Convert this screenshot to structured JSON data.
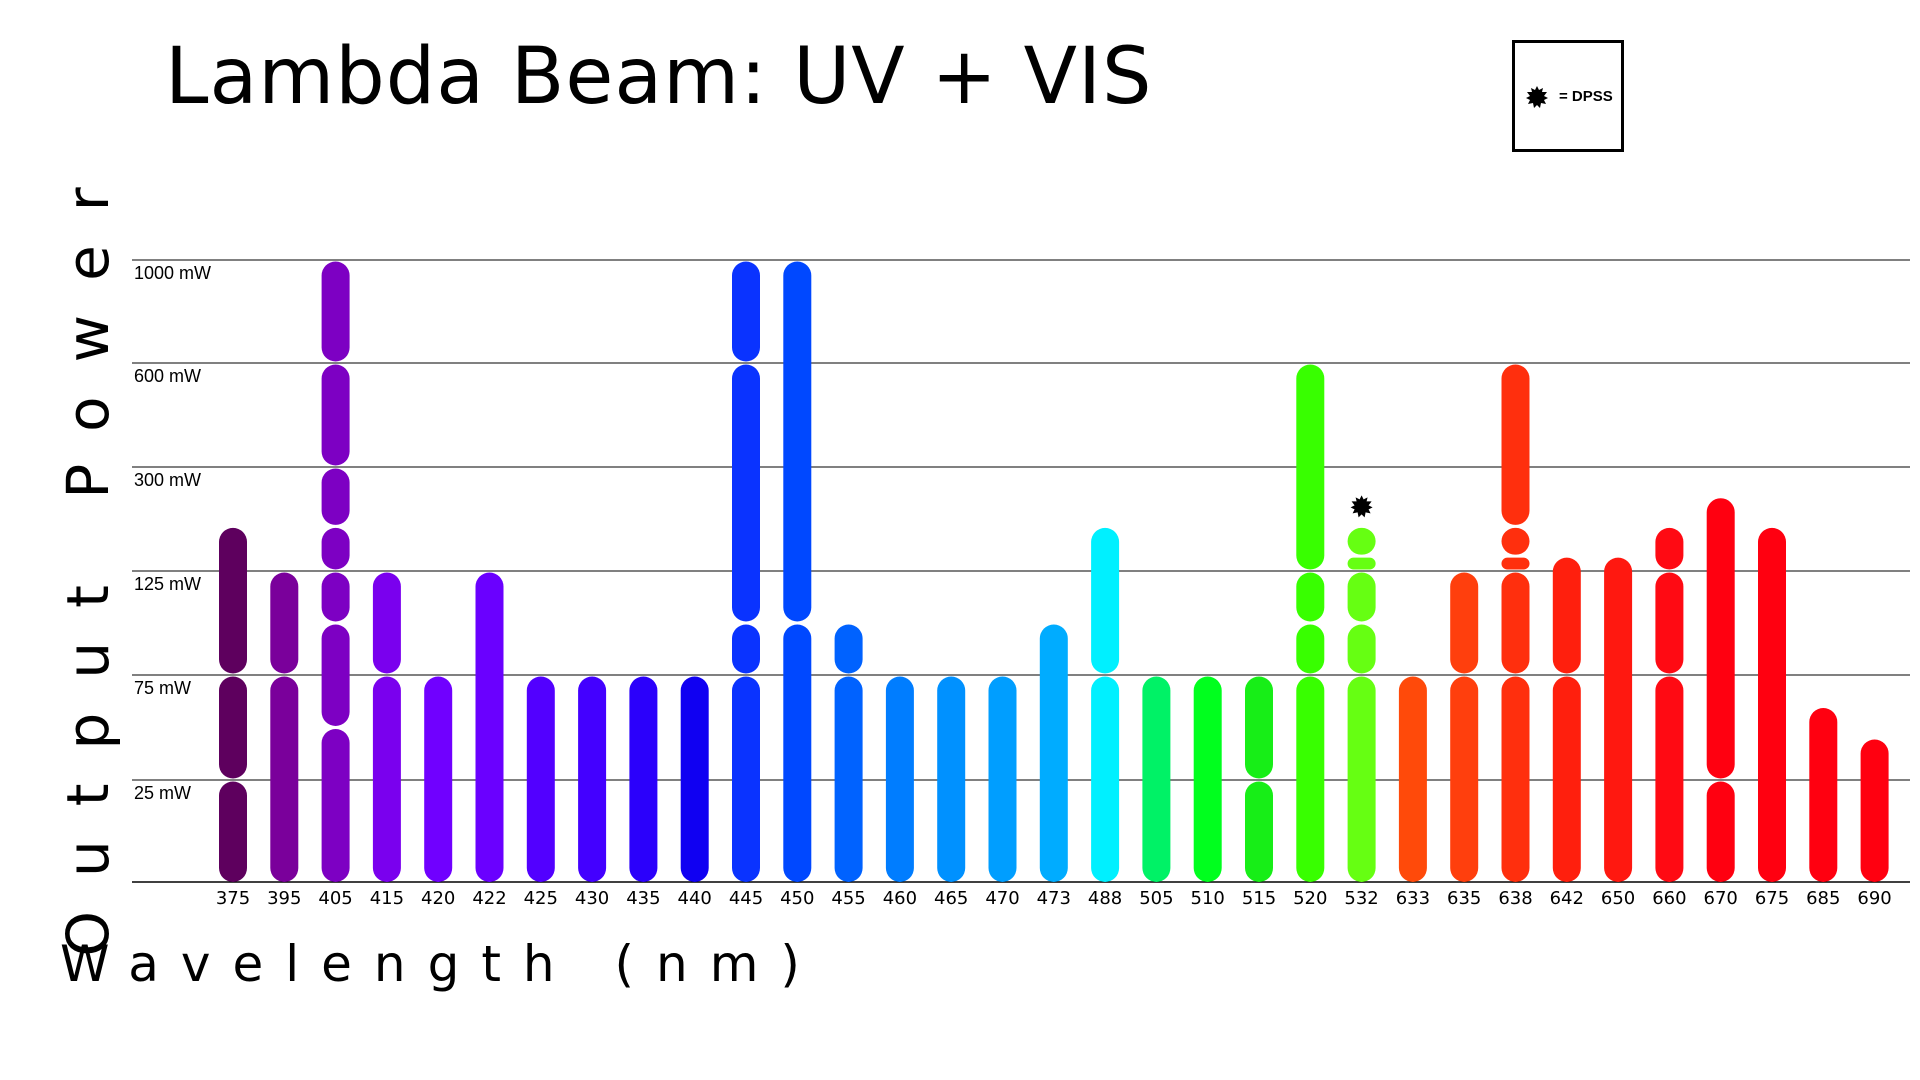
{
  "chart_data": {
    "type": "bar",
    "title": "Lambda Beam: UV + VIS",
    "xlabel": "Wavelength (nm)",
    "ylabel": "Output Power",
    "y_ticks": [
      "25 mW",
      "75 mW",
      "125 mW",
      "300 mW",
      "600 mW",
      "1000 mW"
    ],
    "grid": true,
    "legend": {
      "label": "= DPSS",
      "placement": "top-right"
    },
    "series": [
      {
        "wavelength": "375",
        "color": "#5e005e",
        "options": [
          25,
          75,
          200
        ]
      },
      {
        "wavelength": "395",
        "color": "#7a009b",
        "options": [
          75,
          125
        ]
      },
      {
        "wavelength": "405",
        "color": "#7d00c3",
        "options": [
          50,
          100,
          125,
          200,
          300,
          600,
          1000
        ]
      },
      {
        "wavelength": "415",
        "color": "#7a00ee",
        "options": [
          75,
          125
        ]
      },
      {
        "wavelength": "420",
        "color": "#7000ff",
        "options": [
          75
        ]
      },
      {
        "wavelength": "422",
        "color": "#6a00ff",
        "options": [
          125
        ]
      },
      {
        "wavelength": "425",
        "color": "#5200ff",
        "options": [
          75
        ]
      },
      {
        "wavelength": "430",
        "color": "#4300ff",
        "options": [
          75
        ]
      },
      {
        "wavelength": "435",
        "color": "#2b00fb",
        "options": [
          75
        ]
      },
      {
        "wavelength": "440",
        "color": "#1000f2",
        "options": [
          75
        ]
      },
      {
        "wavelength": "445",
        "color": "#0a33ff",
        "options": [
          75,
          100,
          600,
          1000
        ]
      },
      {
        "wavelength": "450",
        "color": "#0048ff",
        "options": [
          100,
          1000
        ]
      },
      {
        "wavelength": "455",
        "color": "#0062ff",
        "options": [
          75,
          100
        ]
      },
      {
        "wavelength": "460",
        "color": "#007dff",
        "options": [
          75
        ]
      },
      {
        "wavelength": "465",
        "color": "#0091ff",
        "options": [
          75
        ]
      },
      {
        "wavelength": "470",
        "color": "#009eff",
        "options": [
          75
        ]
      },
      {
        "wavelength": "473",
        "color": "#00acff",
        "options": [
          100
        ]
      },
      {
        "wavelength": "488",
        "color": "#00f0ff",
        "options": [
          75,
          200
        ]
      },
      {
        "wavelength": "505",
        "color": "#00f266",
        "options": [
          75
        ]
      },
      {
        "wavelength": "510",
        "color": "#00ff1e",
        "options": [
          75
        ]
      },
      {
        "wavelength": "515",
        "color": "#17ee17",
        "options": [
          25,
          75
        ]
      },
      {
        "wavelength": "520",
        "color": "#38ff00",
        "options": [
          75,
          100,
          125,
          600
        ]
      },
      {
        "wavelength": "532",
        "color": "#66ff12",
        "options": [
          75,
          100,
          125,
          150,
          200
        ],
        "dpss": true
      },
      {
        "wavelength": "633",
        "color": "#ff4a0a",
        "options": [
          75
        ]
      },
      {
        "wavelength": "635",
        "color": "#ff3f0d",
        "options": [
          75,
          125
        ]
      },
      {
        "wavelength": "638",
        "color": "#ff2f0d",
        "options": [
          75,
          125,
          150,
          200,
          600
        ]
      },
      {
        "wavelength": "642",
        "color": "#ff1f0d",
        "options": [
          75,
          150
        ]
      },
      {
        "wavelength": "650",
        "color": "#ff1810",
        "options": [
          150
        ]
      },
      {
        "wavelength": "660",
        "color": "#ff0a13",
        "options": [
          75,
          125,
          200
        ]
      },
      {
        "wavelength": "670",
        "color": "#ff0010",
        "options": [
          25,
          250
        ]
      },
      {
        "wavelength": "675",
        "color": "#ff0010",
        "options": [
          200
        ]
      },
      {
        "wavelength": "685",
        "color": "#ff0010",
        "options": [
          60
        ]
      },
      {
        "wavelength": "690",
        "color": "#ff0010",
        "options": [
          45
        ]
      }
    ]
  }
}
